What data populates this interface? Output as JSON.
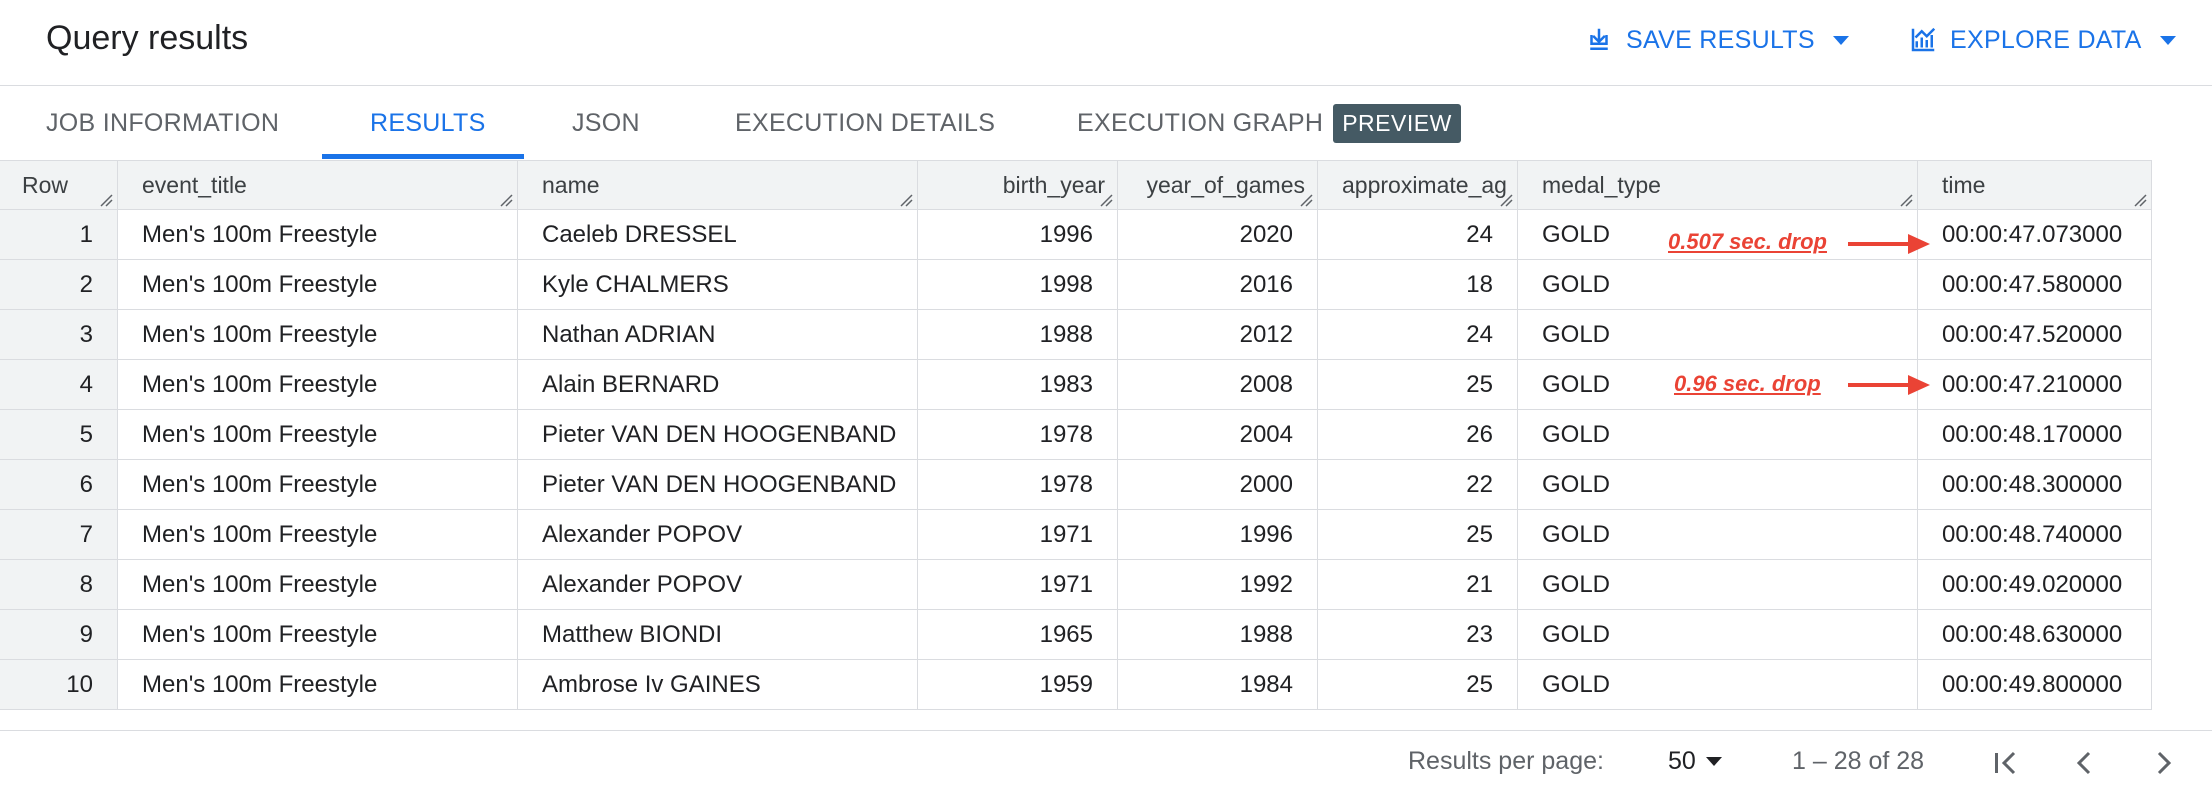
{
  "header": {
    "title": "Query results",
    "save_label": "SAVE RESULTS",
    "explore_label": "EXPLORE DATA",
    "save_icon": "download-icon",
    "explore_icon": "chart-icon",
    "accent_color": "#1a73e8"
  },
  "tabs": [
    {
      "label": "JOB INFORMATION"
    },
    {
      "label": "RESULTS",
      "active": true
    },
    {
      "label": "JSON"
    },
    {
      "label": "EXECUTION DETAILS"
    },
    {
      "label": "EXECUTION GRAPH",
      "badge": "PREVIEW"
    }
  ],
  "table": {
    "columns": [
      "Row",
      "event_title",
      "name",
      "birth_year",
      "year_of_games",
      "approximate_ag",
      "medal_type",
      "time"
    ],
    "rows": [
      [
        "1",
        "Men's 100m Freestyle",
        "Caeleb DRESSEL",
        "1996",
        "2020",
        "24",
        "GOLD",
        "00:00:47.073000"
      ],
      [
        "2",
        "Men's 100m Freestyle",
        "Kyle CHALMERS",
        "1998",
        "2016",
        "18",
        "GOLD",
        "00:00:47.580000"
      ],
      [
        "3",
        "Men's 100m Freestyle",
        "Nathan ADRIAN",
        "1988",
        "2012",
        "24",
        "GOLD",
        "00:00:47.520000"
      ],
      [
        "4",
        "Men's 100m Freestyle",
        "Alain BERNARD",
        "1983",
        "2008",
        "25",
        "GOLD",
        "00:00:47.210000"
      ],
      [
        "5",
        "Men's 100m Freestyle",
        "Pieter VAN DEN HOOGENBAND",
        "1978",
        "2004",
        "26",
        "GOLD",
        "00:00:48.170000"
      ],
      [
        "6",
        "Men's 100m Freestyle",
        "Pieter VAN DEN HOOGENBAND",
        "1978",
        "2000",
        "22",
        "GOLD",
        "00:00:48.300000"
      ],
      [
        "7",
        "Men's 100m Freestyle",
        "Alexander POPOV",
        "1971",
        "1996",
        "25",
        "GOLD",
        "00:00:48.740000"
      ],
      [
        "8",
        "Men's 100m Freestyle",
        "Alexander POPOV",
        "1971",
        "1992",
        "21",
        "GOLD",
        "00:00:49.020000"
      ],
      [
        "9",
        "Men's 100m Freestyle",
        "Matthew BIONDI",
        "1965",
        "1988",
        "23",
        "GOLD",
        "00:00:48.630000"
      ],
      [
        "10",
        "Men's 100m Freestyle",
        "Ambrose Iv GAINES",
        "1959",
        "1984",
        "25",
        "GOLD",
        "00:00:49.800000"
      ]
    ]
  },
  "annotations": [
    {
      "text": "0.507 sec. drop",
      "color": "#ea4335"
    },
    {
      "text": "0.96 sec. drop",
      "color": "#ea4335"
    }
  ],
  "footer": {
    "per_page_label": "Results per page:",
    "per_page_value": "50",
    "range": "1 – 28 of 28"
  }
}
